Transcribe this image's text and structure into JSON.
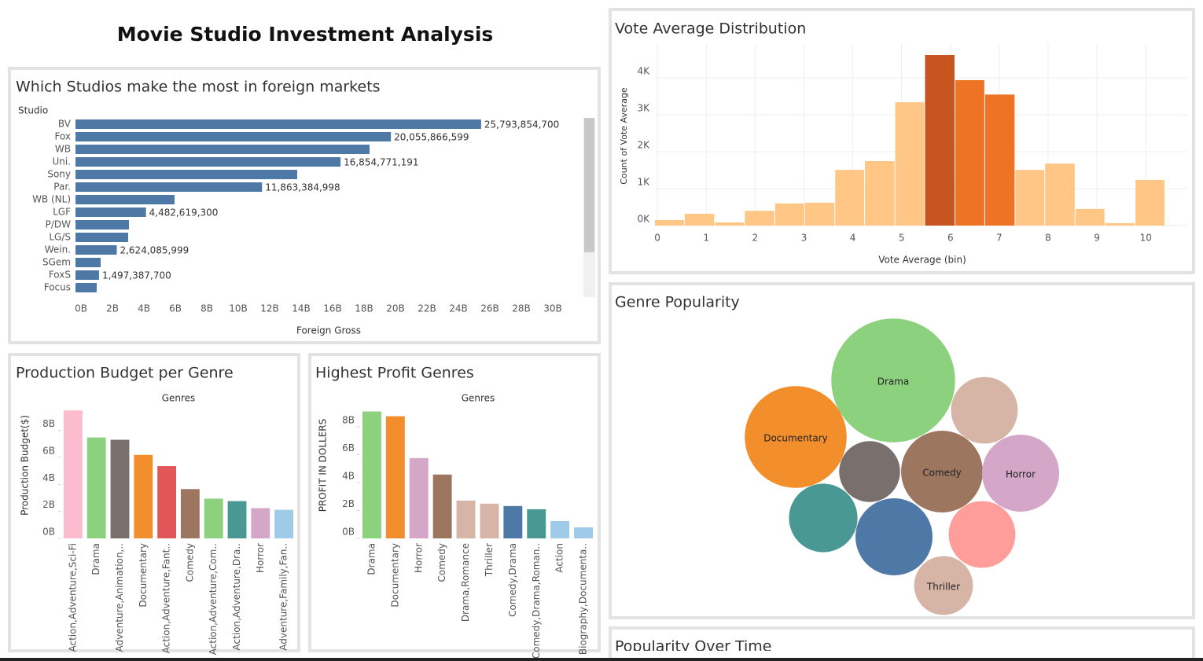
{
  "title": "Movie Studio Investment Analysis",
  "chart_data": [
    {
      "type": "hbar",
      "title": "Which Studios make the most in foreign markets",
      "category_label": "Studio",
      "x_label": "Foreign Gross",
      "categories": [
        "BV",
        "Fox",
        "WB",
        "Uni.",
        "Sony",
        "Par.",
        "WB (NL)",
        "LGF",
        "P/DW",
        "LG/S",
        "Wein.",
        "SGem",
        "FoxS",
        "Focus"
      ],
      "values": [
        25793854700,
        20055866599,
        18700000000,
        16854771191,
        14100000000,
        11863384998,
        6300000000,
        4482619300,
        3400000000,
        3350000000,
        2624085999,
        1600000000,
        1497387700,
        1350000000
      ],
      "value_labels": [
        "25,793,854,700",
        "20,055,866,599",
        null,
        "16,854,771,191",
        null,
        "11,863,384,998",
        null,
        "4,482,619,300",
        null,
        null,
        "2,624,085,999",
        null,
        "1,497,387,700",
        null
      ],
      "color": "#4e79a7",
      "xlim": [
        0,
        33000000000
      ],
      "xticks": [
        {
          "value": 0,
          "label": "0B"
        },
        {
          "value": 2000000000,
          "label": "2B"
        },
        {
          "value": 4000000000,
          "label": "4B"
        },
        {
          "value": 6000000000,
          "label": "6B"
        },
        {
          "value": 8000000000,
          "label": "8B"
        },
        {
          "value": 10000000000,
          "label": "10B"
        },
        {
          "value": 12000000000,
          "label": "12B"
        },
        {
          "value": 14000000000,
          "label": "14B"
        },
        {
          "value": 16000000000,
          "label": "16B"
        },
        {
          "value": 18000000000,
          "label": "18B"
        },
        {
          "value": 20000000000,
          "label": "20B"
        },
        {
          "value": 22000000000,
          "label": "22B"
        },
        {
          "value": 24000000000,
          "label": "24B"
        },
        {
          "value": 26000000000,
          "label": "26B"
        },
        {
          "value": 28000000000,
          "label": "28B"
        },
        {
          "value": 30000000000,
          "label": "30B"
        }
      ]
    },
    {
      "type": "histogram",
      "title": "Vote Average Distribution",
      "x_label": "Vote Average (bin)",
      "y_label": "Count of Vote Average",
      "bins": [
        -0.05,
        0.56,
        1.18,
        1.79,
        2.41,
        3.02,
        3.64,
        4.25,
        4.87,
        5.48,
        6.1,
        6.71,
        7.33,
        7.94,
        8.56,
        9.17,
        9.79,
        10.4
      ],
      "values": [
        150,
        320,
        85,
        400,
        600,
        620,
        1510,
        1745,
        3340,
        4620,
        3940,
        3550,
        1510,
        1680,
        450,
        65,
        1235
      ],
      "colors": [
        "#ffc685",
        "#ffc685",
        "#ffc685",
        "#ffc685",
        "#ffc685",
        "#ffc685",
        "#ffc685",
        "#ffc685",
        "#ffc685",
        "#c8541f",
        "#ee7324",
        "#ee7324",
        "#ffc685",
        "#ffc685",
        "#ffc685",
        "#ffc685",
        "#ffc685"
      ],
      "xlim": [
        -0.05,
        10.85
      ],
      "xticks": [
        0,
        1,
        2,
        3,
        4,
        5,
        6,
        7,
        8,
        9,
        10
      ],
      "ylim": [
        0,
        4940
      ],
      "yticks": [
        {
          "value": 0,
          "label": "0K"
        },
        {
          "value": 1000,
          "label": "1K"
        },
        {
          "value": 2000,
          "label": "2K"
        },
        {
          "value": 3000,
          "label": "3K"
        },
        {
          "value": 4000,
          "label": "4K"
        }
      ],
      "grid": true
    },
    {
      "type": "bubble",
      "title": "Genre Popularity",
      "categories": [
        "Drama",
        "Documentary",
        null,
        "Comedy",
        "Horror",
        null,
        null,
        null,
        null,
        "Thriller"
      ],
      "values": [
        62,
        42,
        18,
        27,
        24,
        15,
        19,
        24,
        18,
        14
      ],
      "colors": [
        "#8cd17d",
        "#f28e2b",
        "#d7b5a6",
        "#9d7660",
        "#d4a6c8",
        "#79706e",
        "#499894",
        "#4e79a7",
        "#ff9d9a",
        "#d7b5a6"
      ]
    },
    {
      "type": "bar",
      "title": "Production Budget per Genre",
      "header": "Genres",
      "y_label": "Production Budget($)",
      "categories": [
        "Action,Adventure,Sci-Fi",
        "Drama",
        "Adventure,Animation,..",
        "Documentary",
        "Action,Adventure,Fant..",
        "Comedy",
        "Action,Adventure,Com..",
        "Action,Adventure,Dra..",
        "Horror",
        "Adventure,Family,Fan.."
      ],
      "values": [
        9470000000,
        7470000000,
        7300000000,
        6180000000,
        5350000000,
        3650000000,
        2940000000,
        2760000000,
        2240000000,
        2120000000
      ],
      "colors": [
        "#fbbccf",
        "#8cd17d",
        "#79706e",
        "#f28e2b",
        "#e15759",
        "#9d7660",
        "#8cd17d",
        "#499894",
        "#d4a6c8",
        "#a0cbe8"
      ],
      "ylim": [
        0,
        9600000000
      ],
      "yticks": [
        {
          "value": 0,
          "label": "0B"
        },
        {
          "value": 2000000000,
          "label": "2B"
        },
        {
          "value": 4000000000,
          "label": "4B"
        },
        {
          "value": 6000000000,
          "label": "6B"
        },
        {
          "value": 8000000000,
          "label": "8B"
        }
      ]
    },
    {
      "type": "bar",
      "title": "Highest Profit Genres",
      "header": "Genres",
      "y_label": "PROFIT IN DOLLERS",
      "categories": [
        "Drama",
        "Documentary",
        "Horror",
        "Comedy",
        "Drama,Romance",
        "Thriller",
        "Comedy,Drama",
        "Comedy,Drama,Roman..",
        "Action",
        "Biography,Documenta.."
      ],
      "values": [
        9100000000,
        8760000000,
        5760000000,
        4580000000,
        2710000000,
        2490000000,
        2320000000,
        2090000000,
        1240000000,
        790000000
      ],
      "colors": [
        "#8cd17d",
        "#f28e2b",
        "#d4a6c8",
        "#9d7660",
        "#d7b5a6",
        "#d7b5a6",
        "#4e79a7",
        "#499894",
        "#a0cbe8",
        "#a0cbe8"
      ],
      "ylim": [
        0,
        9300000000
      ],
      "yticks": [
        {
          "value": 0,
          "label": "0B"
        },
        {
          "value": 2000000000,
          "label": "2B"
        },
        {
          "value": 4000000000,
          "label": "4B"
        },
        {
          "value": 6000000000,
          "label": "6B"
        },
        {
          "value": 8000000000,
          "label": "8B"
        }
      ]
    },
    {
      "type": "line",
      "title": "Popularity Over Time"
    }
  ]
}
